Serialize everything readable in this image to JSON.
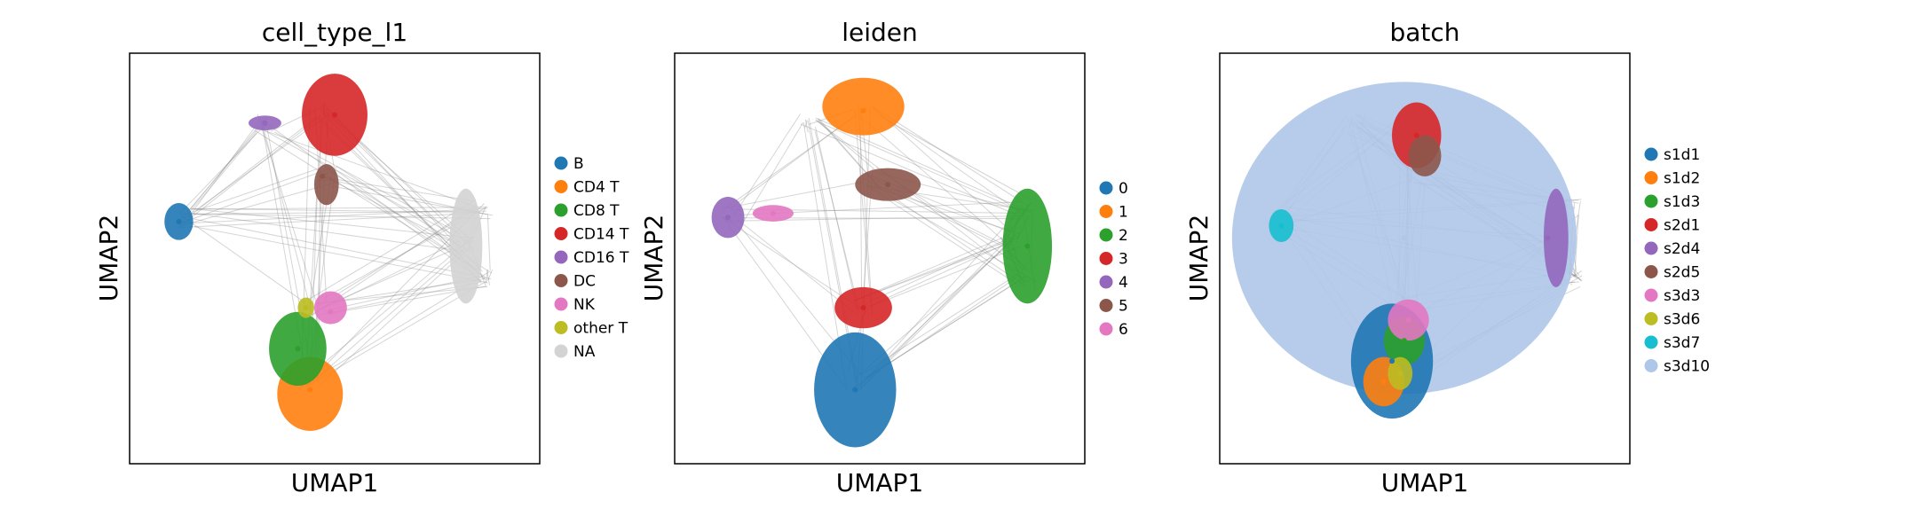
{
  "figure": {
    "panels": [
      {
        "title": "cell_type_l1",
        "xlabel": "UMAP1",
        "ylabel": "UMAP2",
        "legend": [
          {
            "label": "B",
            "color": "#1f77b4"
          },
          {
            "label": "CD4 T",
            "color": "#ff7f0e"
          },
          {
            "label": "CD8 T",
            "color": "#2ca02c"
          },
          {
            "label": "CD14 T",
            "color": "#d62728"
          },
          {
            "label": "CD16 T",
            "color": "#9467bd"
          },
          {
            "label": "DC",
            "color": "#8c564b"
          },
          {
            "label": "NK",
            "color": "#e377c2"
          },
          {
            "label": "other T",
            "color": "#bcbd22"
          },
          {
            "label": "NA",
            "color": "#d3d3d3"
          }
        ]
      },
      {
        "title": "leiden",
        "xlabel": "UMAP1",
        "ylabel": "UMAP2",
        "legend": [
          {
            "label": "0",
            "color": "#1f77b4"
          },
          {
            "label": "1",
            "color": "#ff7f0e"
          },
          {
            "label": "2",
            "color": "#2ca02c"
          },
          {
            "label": "3",
            "color": "#d62728"
          },
          {
            "label": "4",
            "color": "#9467bd"
          },
          {
            "label": "5",
            "color": "#8c564b"
          },
          {
            "label": "6",
            "color": "#e377c2"
          }
        ]
      },
      {
        "title": "batch",
        "xlabel": "UMAP1",
        "ylabel": "UMAP2",
        "legend": [
          {
            "label": "s1d1",
            "color": "#1f77b4"
          },
          {
            "label": "s1d2",
            "color": "#ff7f0e"
          },
          {
            "label": "s1d3",
            "color": "#2ca02c"
          },
          {
            "label": "s2d1",
            "color": "#d62728"
          },
          {
            "label": "s2d4",
            "color": "#9467bd"
          },
          {
            "label": "s2d5",
            "color": "#8c564b"
          },
          {
            "label": "s3d3",
            "color": "#e377c2"
          },
          {
            "label": "s3d6",
            "color": "#bcbd22"
          },
          {
            "label": "s3d7",
            "color": "#17becf"
          },
          {
            "label": "s3d10",
            "color": "#aec7e8"
          }
        ]
      }
    ]
  },
  "chart_data": [
    {
      "type": "scatter",
      "title": "cell_type_l1",
      "xlabel": "UMAP1",
      "ylabel": "UMAP2",
      "grid": false,
      "legend_position": "right",
      "series": [
        {
          "name": "B",
          "color": "#1f77b4",
          "x": [
            0.12
          ],
          "y": [
            0.59
          ]
        },
        {
          "name": "CD4 T",
          "color": "#ff7f0e",
          "x": [
            0.44
          ],
          "y": [
            0.18
          ]
        },
        {
          "name": "CD8 T",
          "color": "#2ca02c",
          "x": [
            0.41
          ],
          "y": [
            0.28
          ]
        },
        {
          "name": "CD14 T",
          "color": "#d62728",
          "x": [
            0.5
          ],
          "y": [
            0.85
          ]
        },
        {
          "name": "CD16 T",
          "color": "#9467bd",
          "x": [
            0.33
          ],
          "y": [
            0.83
          ]
        },
        {
          "name": "DC",
          "color": "#8c564b",
          "x": [
            0.47
          ],
          "y": [
            0.7
          ]
        },
        {
          "name": "NK",
          "color": "#e377c2",
          "x": [
            0.49
          ],
          "y": [
            0.37
          ]
        },
        {
          "name": "other T",
          "color": "#bcbd22",
          "x": [
            0.43
          ],
          "y": [
            0.38
          ]
        },
        {
          "name": "NA",
          "color": "#d3d3d3",
          "x": [
            0.82
          ],
          "y": [
            0.54
          ]
        }
      ]
    },
    {
      "type": "scatter",
      "title": "leiden",
      "xlabel": "UMAP1",
      "ylabel": "UMAP2",
      "grid": false,
      "legend_position": "right",
      "series": [
        {
          "name": "0",
          "color": "#1f77b4",
          "x": [
            0.44
          ],
          "y": [
            0.18
          ]
        },
        {
          "name": "1",
          "color": "#ff7f0e",
          "x": [
            0.46
          ],
          "y": [
            0.86
          ]
        },
        {
          "name": "2",
          "color": "#2ca02c",
          "x": [
            0.86
          ],
          "y": [
            0.53
          ]
        },
        {
          "name": "3",
          "color": "#d62728",
          "x": [
            0.46
          ],
          "y": [
            0.38
          ]
        },
        {
          "name": "4",
          "color": "#9467bd",
          "x": [
            0.13
          ],
          "y": [
            0.6
          ]
        },
        {
          "name": "5",
          "color": "#8c564b",
          "x": [
            0.52
          ],
          "y": [
            0.68
          ]
        },
        {
          "name": "6",
          "color": "#e377c2",
          "x": [
            0.24
          ],
          "y": [
            0.61
          ]
        }
      ]
    },
    {
      "type": "scatter",
      "title": "batch",
      "xlabel": "UMAP1",
      "ylabel": "UMAP2",
      "grid": false,
      "legend_position": "right",
      "series": [
        {
          "name": "s1d1",
          "color": "#1f77b4",
          "x": [
            0.42
          ],
          "y": [
            0.25
          ]
        },
        {
          "name": "s1d2",
          "color": "#ff7f0e",
          "x": [
            0.4
          ],
          "y": [
            0.2
          ]
        },
        {
          "name": "s1d3",
          "color": "#2ca02c",
          "x": [
            0.45
          ],
          "y": [
            0.3
          ]
        },
        {
          "name": "s2d1",
          "color": "#d62728",
          "x": [
            0.48
          ],
          "y": [
            0.8
          ]
        },
        {
          "name": "s2d4",
          "color": "#9467bd",
          "x": [
            0.8
          ],
          "y": [
            0.55
          ]
        },
        {
          "name": "s2d5",
          "color": "#8c564b",
          "x": [
            0.5
          ],
          "y": [
            0.75
          ]
        },
        {
          "name": "s3d3",
          "color": "#e377c2",
          "x": [
            0.46
          ],
          "y": [
            0.35
          ]
        },
        {
          "name": "s3d6",
          "color": "#bcbd22",
          "x": [
            0.44
          ],
          "y": [
            0.22
          ]
        },
        {
          "name": "s3d7",
          "color": "#17becf",
          "x": [
            0.15
          ],
          "y": [
            0.58
          ]
        },
        {
          "name": "s3d10",
          "color": "#aec7e8",
          "x": [
            0.45
          ],
          "y": [
            0.55
          ]
        }
      ]
    }
  ]
}
